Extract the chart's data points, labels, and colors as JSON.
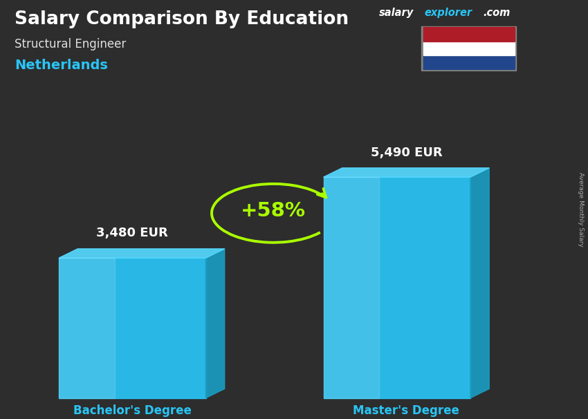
{
  "title": "Salary Comparison By Education",
  "subtitle": "Structural Engineer",
  "country": "Netherlands",
  "y_label": "Average Monthly Salary",
  "categories": [
    "Bachelor's Degree",
    "Master's Degree"
  ],
  "values": [
    3480,
    5490
  ],
  "value_labels": [
    "3,480 EUR",
    "5,490 EUR"
  ],
  "pct_change": "+58%",
  "bar_main_color": "#29c5f6",
  "bar_right_color": "#1a9bbf",
  "bar_top_color": "#55d8ff",
  "bar_alpha": 0.92,
  "bg_color": "#2d2d2d",
  "title_color": "#ffffff",
  "subtitle_color": "#e0e0e0",
  "country_color": "#29c5f6",
  "category_color": "#29c5f6",
  "value_color": "#ffffff",
  "pct_color": "#aaff00",
  "arrow_color": "#aaff00",
  "site_salary_color": "#ffffff",
  "site_explorer_color": "#29c5f6",
  "site_com_color": "#ffffff",
  "flag_colors": [
    "#ae1c28",
    "#ffffff",
    "#21468b"
  ],
  "figsize": [
    8.5,
    6.06
  ],
  "dpi": 100
}
